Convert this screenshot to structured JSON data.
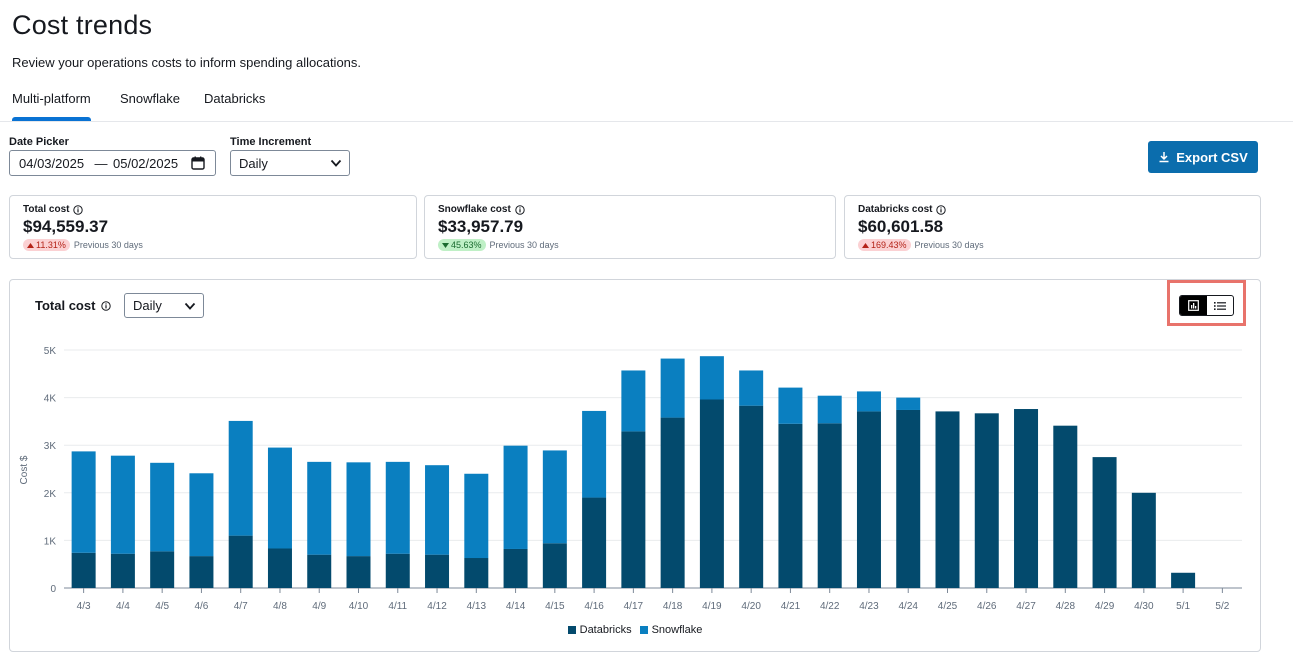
{
  "page": {
    "title": "Cost trends",
    "subtitle": "Review your operations costs to inform spending allocations."
  },
  "tabs": [
    {
      "label": "Multi-platform",
      "active": true
    },
    {
      "label": "Snowflake",
      "active": false
    },
    {
      "label": "Databricks",
      "active": false
    }
  ],
  "filters": {
    "date_picker_label": "Date Picker",
    "start_date": "04/03/2025",
    "end_date": "05/02/2025",
    "date_separator": "—",
    "time_increment_label": "Time Increment",
    "time_increment_value": "Daily"
  },
  "export_button": {
    "label": "Export CSV",
    "icon": "download-icon"
  },
  "summary_cards": [
    {
      "label": "Total cost",
      "value": "$94,559.37",
      "change": "11.31%",
      "direction": "up",
      "note": "Previous 30 days"
    },
    {
      "label": "Snowflake cost",
      "value": "$33,957.79",
      "change": "45.63%",
      "direction": "down",
      "note": "Previous 30 days"
    },
    {
      "label": "Databricks cost",
      "value": "$60,601.58",
      "change": "169.43%",
      "direction": "up",
      "note": "Previous 30 days"
    }
  ],
  "chart_panel": {
    "title": "Total cost",
    "increment_value": "Daily",
    "view_toggle": {
      "chart_icon": "bar-chart-icon",
      "list_icon": "list-icon",
      "selected": "chart"
    }
  },
  "colors": {
    "databricks": "#034a6d",
    "snowflake": "#0a7fc0",
    "accent": "#0972d3",
    "highlight": "#e8736b"
  },
  "chart_data": {
    "type": "bar",
    "stacked": true,
    "ylabel": "Cost $",
    "ylim": [
      0,
      5000
    ],
    "yticks": [
      0,
      1000,
      2000,
      3000,
      4000,
      5000
    ],
    "ytick_labels": [
      "0",
      "1K",
      "2K",
      "3K",
      "4K",
      "5K"
    ],
    "grid": true,
    "legend": "bottom-center",
    "categories": [
      "4/3",
      "4/4",
      "4/5",
      "4/6",
      "4/7",
      "4/8",
      "4/9",
      "4/10",
      "4/11",
      "4/12",
      "4/13",
      "4/14",
      "4/15",
      "4/16",
      "4/17",
      "4/18",
      "4/19",
      "4/20",
      "4/21",
      "4/22",
      "4/23",
      "4/24",
      "4/25",
      "4/26",
      "4/27",
      "4/28",
      "4/29",
      "4/30",
      "5/1",
      "5/2"
    ],
    "series": [
      {
        "name": "Databricks",
        "values": [
          740,
          720,
          770,
          670,
          1100,
          830,
          700,
          670,
          720,
          700,
          630,
          820,
          940,
          1900,
          3290,
          3580,
          3960,
          3830,
          3450,
          3460,
          3710,
          3740,
          3710,
          3670,
          3760,
          3410,
          2750,
          2000,
          320,
          0
        ]
      },
      {
        "name": "Snowflake",
        "values": [
          2130,
          2060,
          1860,
          1740,
          2410,
          2120,
          1950,
          1970,
          1930,
          1880,
          1770,
          2170,
          1950,
          1820,
          1280,
          1240,
          910,
          740,
          760,
          580,
          420,
          260,
          0,
          0,
          0,
          0,
          0,
          0,
          0,
          0
        ]
      }
    ]
  }
}
